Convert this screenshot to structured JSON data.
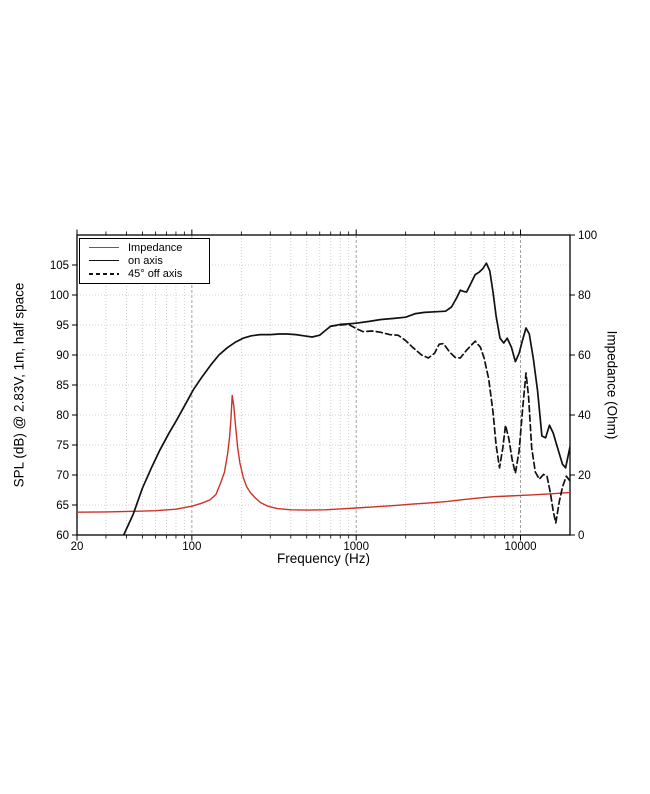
{
  "page": {
    "background": "#ffffff"
  },
  "chart_data": {
    "type": "line",
    "title": "",
    "xlabel": "Frequency (Hz)",
    "ylabel_left": "SPL (dB) @ 2.83V, 1m, half space",
    "ylabel_right": "Impedance (Ohm)",
    "x_scale": "log",
    "x_range": [
      20,
      20000
    ],
    "x_ticks_labeled": [
      "20",
      "100",
      "1000",
      "10000"
    ],
    "x_tick_values": [
      20,
      100,
      1000,
      10000
    ],
    "y_left_range": [
      60,
      110
    ],
    "y_left_ticks": [
      60,
      65,
      70,
      75,
      80,
      85,
      90,
      95,
      100,
      105
    ],
    "y_right_range": [
      0,
      100
    ],
    "y_right_ticks": [
      0,
      20,
      40,
      60,
      80,
      100
    ],
    "grid": true,
    "legend_position": "top-left",
    "colors": {
      "impedance": "#cc3327",
      "spl": "#111111",
      "grid_minor": "#c6c6c6",
      "grid_major": "#9a9a9a",
      "frame": "#000000"
    },
    "series": [
      {
        "name": "Impedance",
        "axis": "right",
        "style": "solid",
        "color": "#cc3327",
        "unit": "Ohm",
        "points": [
          [
            20,
            7.6
          ],
          [
            30,
            7.7
          ],
          [
            45,
            7.9
          ],
          [
            60,
            8.1
          ],
          [
            80,
            8.6
          ],
          [
            100,
            9.6
          ],
          [
            115,
            10.6
          ],
          [
            129,
            11.7
          ],
          [
            140,
            13.5
          ],
          [
            150,
            17.5
          ],
          [
            158,
            21
          ],
          [
            165,
            27
          ],
          [
            170,
            33
          ],
          [
            173,
            39
          ],
          [
            176,
            46.5
          ],
          [
            180,
            43
          ],
          [
            184,
            37
          ],
          [
            190,
            29
          ],
          [
            196,
            24
          ],
          [
            206,
            19
          ],
          [
            216,
            16
          ],
          [
            228,
            14
          ],
          [
            245,
            12.2
          ],
          [
            262,
            10.8
          ],
          [
            290,
            9.6
          ],
          [
            330,
            8.8
          ],
          [
            400,
            8.4
          ],
          [
            500,
            8.3
          ],
          [
            650,
            8.4
          ],
          [
            800,
            8.7
          ],
          [
            1000,
            9.0
          ],
          [
            1300,
            9.4
          ],
          [
            1700,
            9.8
          ],
          [
            2200,
            10.3
          ],
          [
            2800,
            10.7
          ],
          [
            3600,
            11.2
          ],
          [
            4500,
            11.8
          ],
          [
            5500,
            12.3
          ],
          [
            7000,
            12.8
          ],
          [
            8500,
            13.0
          ],
          [
            10000,
            13.2
          ],
          [
            12000,
            13.4
          ],
          [
            14000,
            13.6
          ],
          [
            17000,
            13.9
          ],
          [
            20000,
            14.2
          ]
        ]
      },
      {
        "name": "on axis",
        "axis": "left",
        "style": "solid",
        "color": "#111111",
        "unit": "dB",
        "points": [
          [
            38.5,
            60
          ],
          [
            44,
            63.5
          ],
          [
            50,
            67.8
          ],
          [
            57,
            71.3
          ],
          [
            64,
            74.2
          ],
          [
            72,
            76.8
          ],
          [
            81,
            79.2
          ],
          [
            91,
            81.7
          ],
          [
            102,
            84.2
          ],
          [
            115,
            86.3
          ],
          [
            130,
            88.3
          ],
          [
            146,
            90.0
          ],
          [
            164,
            91.2
          ],
          [
            183,
            92.1
          ],
          [
            205,
            92.8
          ],
          [
            230,
            93.2
          ],
          [
            260,
            93.4
          ],
          [
            300,
            93.4
          ],
          [
            340,
            93.5
          ],
          [
            380,
            93.5
          ],
          [
            430,
            93.4
          ],
          [
            480,
            93.2
          ],
          [
            540,
            93.0
          ],
          [
            600,
            93.3
          ],
          [
            650,
            94.1
          ],
          [
            700,
            94.8
          ],
          [
            800,
            95.1
          ],
          [
            900,
            95.2
          ],
          [
            1000,
            95.3
          ],
          [
            1200,
            95.6
          ],
          [
            1400,
            95.9
          ],
          [
            1700,
            96.1
          ],
          [
            2000,
            96.3
          ],
          [
            2300,
            96.9
          ],
          [
            2600,
            97.1
          ],
          [
            3000,
            97.2
          ],
          [
            3500,
            97.3
          ],
          [
            3800,
            98.0
          ],
          [
            4100,
            99.6
          ],
          [
            4300,
            100.8
          ],
          [
            4500,
            100.6
          ],
          [
            4700,
            100.5
          ],
          [
            5000,
            102.0
          ],
          [
            5300,
            103.4
          ],
          [
            5600,
            103.8
          ],
          [
            5900,
            104.4
          ],
          [
            6200,
            105.3
          ],
          [
            6500,
            104.0
          ],
          [
            6800,
            100.5
          ],
          [
            7100,
            96.5
          ],
          [
            7500,
            92.8
          ],
          [
            7900,
            92.0
          ],
          [
            8300,
            92.8
          ],
          [
            8800,
            91.3
          ],
          [
            9300,
            88.9
          ],
          [
            9800,
            90.3
          ],
          [
            10300,
            92.5
          ],
          [
            10800,
            94.5
          ],
          [
            11300,
            93.5
          ],
          [
            12000,
            89.2
          ],
          [
            12700,
            84.0
          ],
          [
            13500,
            76.5
          ],
          [
            14200,
            76.2
          ],
          [
            15000,
            78.3
          ],
          [
            15800,
            77.0
          ],
          [
            16800,
            74.5
          ],
          [
            18000,
            71.8
          ],
          [
            18800,
            71.2
          ],
          [
            20000,
            74.7
          ]
        ]
      },
      {
        "name": "45° off axis",
        "axis": "left",
        "style": "dashed",
        "color": "#111111",
        "unit": "dB",
        "points": [
          [
            700,
            94.8
          ],
          [
            800,
            95.0
          ],
          [
            900,
            95.1
          ],
          [
            1000,
            94.4
          ],
          [
            1100,
            93.9
          ],
          [
            1250,
            94.0
          ],
          [
            1400,
            93.8
          ],
          [
            1600,
            93.4
          ],
          [
            1800,
            93.3
          ],
          [
            2000,
            92.4
          ],
          [
            2200,
            91.3
          ],
          [
            2500,
            90.0
          ],
          [
            2750,
            89.5
          ],
          [
            3000,
            90.3
          ],
          [
            3200,
            91.8
          ],
          [
            3400,
            91.9
          ],
          [
            3700,
            90.5
          ],
          [
            4000,
            89.6
          ],
          [
            4300,
            89.5
          ],
          [
            4700,
            90.8
          ],
          [
            5000,
            91.6
          ],
          [
            5300,
            92.3
          ],
          [
            5700,
            91.3
          ],
          [
            6000,
            89.5
          ],
          [
            6400,
            86.0
          ],
          [
            6800,
            80.5
          ],
          [
            7100,
            75.0
          ],
          [
            7450,
            71.2
          ],
          [
            7800,
            74.5
          ],
          [
            8100,
            78.3
          ],
          [
            8500,
            76.0
          ],
          [
            8900,
            72.5
          ],
          [
            9300,
            70.3
          ],
          [
            9800,
            74.0
          ],
          [
            10300,
            81.0
          ],
          [
            10800,
            87.0
          ],
          [
            11200,
            83.0
          ],
          [
            11700,
            74.5
          ],
          [
            12300,
            70.5
          ],
          [
            13000,
            69.3
          ],
          [
            13800,
            70.1
          ],
          [
            14500,
            69.8
          ],
          [
            15200,
            67.0
          ],
          [
            15800,
            64.0
          ],
          [
            16400,
            62.0
          ],
          [
            17200,
            65.5
          ],
          [
            18000,
            68.0
          ],
          [
            19000,
            69.8
          ],
          [
            20000,
            69.0
          ]
        ]
      }
    ]
  }
}
